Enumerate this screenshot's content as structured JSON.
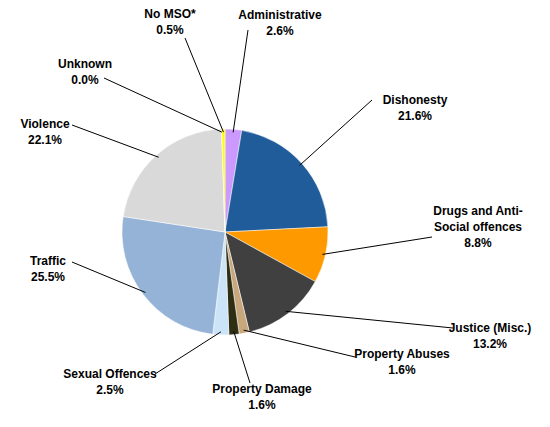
{
  "chart_data": {
    "type": "pie",
    "categories": [
      "Administrative",
      "Dishonesty",
      "Drugs and Anti-Social offences",
      "Justice (Misc.)",
      "Property Abuses",
      "Property Damage",
      "Sexual Offences",
      "Traffic",
      "Violence",
      "Unknown",
      "No MSO*"
    ],
    "values": [
      2.6,
      21.6,
      8.8,
      13.2,
      1.6,
      1.6,
      2.5,
      25.5,
      22.1,
      0.0,
      0.5
    ],
    "value_labels": [
      "2.6%",
      "21.6%",
      "8.8%",
      "13.2%",
      "1.6%",
      "1.6%",
      "2.5%",
      "25.5%",
      "22.1%",
      "0.0%",
      "0.5%"
    ],
    "colors": [
      "#cc99ff",
      "#1f5c99",
      "#ff9900",
      "#404040",
      "#c9a77c",
      "#2e2e12",
      "#cce4f7",
      "#95b3d7",
      "#d9d9d9",
      "#a6a6a6",
      "#ffff00"
    ],
    "data_labels": true
  }
}
